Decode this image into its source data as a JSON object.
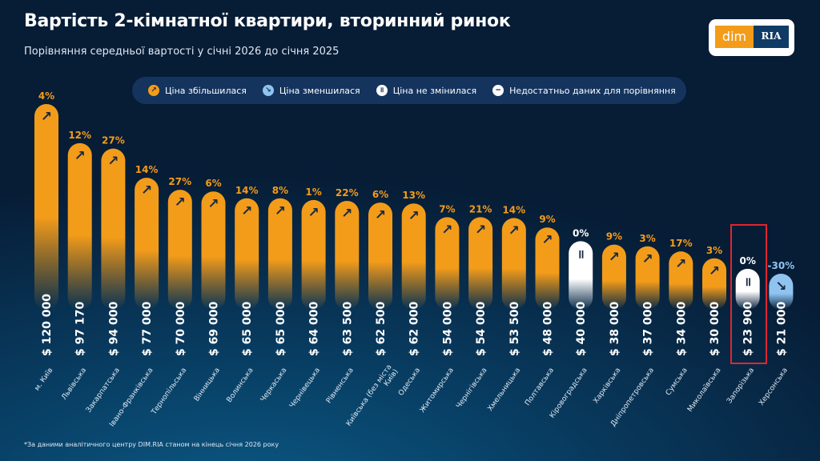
{
  "header": {
    "title": "Вартість 2-кімнатної квартири, вторинний ринок",
    "subtitle": "Порівняння середньої вартості у січні 2026 до січня 2025"
  },
  "logo": {
    "left": "dim",
    "right": "RIA"
  },
  "legend": [
    {
      "label": "Ціна збільшилася",
      "icon": "arrow-up-right-icon",
      "color": "#f39c1a"
    },
    {
      "label": "Ціна зменшилася",
      "icon": "arrow-down-right-icon",
      "color": "#8fc4f0"
    },
    {
      "label": "Ціна не змінилася",
      "icon": "pause-icon",
      "color": "#ffffff"
    },
    {
      "label": "Недостатньо даних для порівняння",
      "icon": "minus-icon",
      "color": "#000000"
    }
  ],
  "footnote": "*За даними аналітичного центру DIM.RIA станом на кінець січня 2026 року",
  "colors": {
    "up": "#f39c1a",
    "down": "#8fc4f0",
    "same": "#ffffff",
    "highlight": "#e0262f"
  },
  "chart_data": {
    "type": "bar",
    "currency": "$",
    "highlighted": "Запорізька",
    "categories": [
      "м. Київ",
      "Львівська",
      "Закарпатська",
      "Івано-Франківська",
      "Тернопільська",
      "Вінницька",
      "Волинська",
      "Черкаська",
      "Чернівецька",
      "Рівненська",
      "Київська (без міста Київ)",
      "Одеська",
      "Житомирська",
      "Чернігівська",
      "Хмельницька",
      "Полтавська",
      "Кіровоградська",
      "Харківська",
      "Дніпропетровська",
      "Сумська",
      "Миколаївська",
      "Запорізька",
      "Херсонська"
    ],
    "values": [
      120000,
      97170,
      94000,
      77000,
      70000,
      69000,
      65000,
      65000,
      64000,
      63500,
      62500,
      62000,
      54000,
      54000,
      53500,
      48000,
      40000,
      38000,
      37000,
      34000,
      30000,
      23900,
      21000
    ],
    "value_labels": [
      "$ 120 000",
      "$ 97 170",
      "$ 94 000",
      "$ 77 000",
      "$ 70 000",
      "$ 69 000",
      "$ 65 000",
      "$ 65 000",
      "$ 64 000",
      "$ 63 500",
      "$ 62 500",
      "$ 62 000",
      "$ 54 000",
      "$ 54 000",
      "$ 53 500",
      "$ 48 000",
      "$ 40 000",
      "$ 38 000",
      "$ 37 000",
      "$ 34 000",
      "$ 30 000",
      "$ 23 900",
      "$ 21 000"
    ],
    "change_labels": [
      "4%",
      "12%",
      "27%",
      "14%",
      "27%",
      "6%",
      "14%",
      "8%",
      "1%",
      "22%",
      "6%",
      "13%",
      "7%",
      "21%",
      "14%",
      "9%",
      "0%",
      "9%",
      "3%",
      "17%",
      "3%",
      "0%",
      "-30%"
    ],
    "trend": [
      "up",
      "up",
      "up",
      "up",
      "up",
      "up",
      "up",
      "up",
      "up",
      "up",
      "up",
      "up",
      "up",
      "up",
      "up",
      "up",
      "same",
      "up",
      "up",
      "up",
      "up",
      "same",
      "down"
    ]
  }
}
